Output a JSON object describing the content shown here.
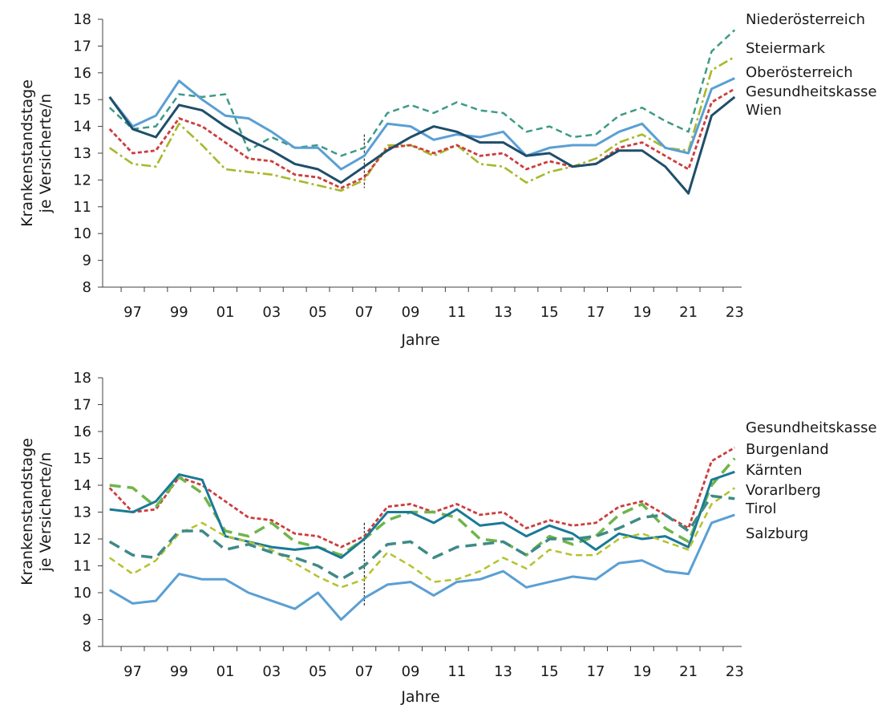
{
  "chart_data": [
    {
      "type": "line",
      "xlabel": "Jahre",
      "ylabel": [
        "Krankenstandstage",
        "je Versicherte/n"
      ],
      "ylim": [
        8,
        18
      ],
      "yticks": [
        8,
        9,
        10,
        11,
        12,
        13,
        14,
        15,
        16,
        17,
        18
      ],
      "x": [
        1996,
        1997,
        1998,
        1999,
        2000,
        2001,
        2002,
        2003,
        2004,
        2005,
        2006,
        2007,
        2008,
        2009,
        2010,
        2011,
        2012,
        2013,
        2014,
        2015,
        2016,
        2017,
        2018,
        2019,
        2020,
        2021,
        2022,
        2023
      ],
      "xtick_labels": [
        "97",
        "99",
        "01",
        "03",
        "05",
        "07",
        "09",
        "11",
        "13",
        "15",
        "17",
        "19",
        "21",
        "23"
      ],
      "marker_year": 2007,
      "grid": false,
      "legend_placement": "right (direct labels)",
      "series": [
        {
          "name": "Niederösterreich",
          "color": "#3e9a86",
          "style": "dashed",
          "values": [
            14.7,
            13.9,
            14.0,
            15.2,
            15.1,
            15.2,
            13.1,
            13.6,
            13.2,
            13.3,
            12.9,
            13.2,
            14.5,
            14.8,
            14.5,
            14.9,
            14.6,
            14.5,
            13.8,
            14.0,
            13.6,
            13.7,
            14.4,
            14.7,
            14.2,
            13.8,
            16.8,
            17.6
          ]
        },
        {
          "name": "Steiermark",
          "color": "#a8b82a",
          "style": "dashdot",
          "values": [
            13.2,
            12.6,
            12.5,
            14.1,
            13.3,
            12.4,
            12.3,
            12.2,
            12.0,
            11.8,
            11.6,
            12.0,
            13.3,
            13.3,
            12.9,
            13.3,
            12.6,
            12.5,
            11.9,
            12.3,
            12.5,
            12.8,
            13.4,
            13.7,
            13.2,
            13.1,
            16.1,
            16.6
          ]
        },
        {
          "name": "Oberösterreich",
          "color": "#5a9fd4",
          "style": "solid",
          "values": [
            15.1,
            14.0,
            14.4,
            15.7,
            15.0,
            14.4,
            14.3,
            13.8,
            13.2,
            13.2,
            12.4,
            12.9,
            14.1,
            14.0,
            13.5,
            13.7,
            13.6,
            13.8,
            12.9,
            13.2,
            13.3,
            13.3,
            13.8,
            14.1,
            13.2,
            13.0,
            15.4,
            15.8
          ]
        },
        {
          "name": "Gesundheitskasse",
          "color": "#cc3d3d",
          "style": "dotted",
          "values": [
            13.9,
            13.0,
            13.1,
            14.3,
            14.0,
            13.4,
            12.8,
            12.7,
            12.2,
            12.1,
            11.7,
            12.1,
            13.2,
            13.3,
            13.0,
            13.3,
            12.9,
            13.0,
            12.4,
            12.7,
            12.5,
            12.6,
            13.2,
            13.4,
            12.9,
            12.4,
            14.9,
            15.4
          ]
        },
        {
          "name": "Wien",
          "color": "#1f4e6a",
          "style": "solid",
          "values": [
            15.1,
            13.9,
            13.6,
            14.8,
            14.6,
            14.0,
            13.5,
            13.1,
            12.6,
            12.4,
            11.9,
            12.5,
            13.1,
            13.6,
            14.0,
            13.8,
            13.4,
            13.4,
            12.9,
            13.0,
            12.5,
            12.6,
            13.1,
            13.1,
            12.5,
            11.5,
            14.4,
            15.1
          ]
        }
      ]
    },
    {
      "type": "line",
      "xlabel": "Jahre",
      "ylabel": [
        "Krankenstandstage",
        "je Versicherte/n"
      ],
      "ylim": [
        8,
        18
      ],
      "yticks": [
        8,
        9,
        10,
        11,
        12,
        13,
        14,
        15,
        16,
        17,
        18
      ],
      "x": [
        1996,
        1997,
        1998,
        1999,
        2000,
        2001,
        2002,
        2003,
        2004,
        2005,
        2006,
        2007,
        2008,
        2009,
        2010,
        2011,
        2012,
        2013,
        2014,
        2015,
        2016,
        2017,
        2018,
        2019,
        2020,
        2021,
        2022,
        2023
      ],
      "xtick_labels": [
        "97",
        "99",
        "01",
        "03",
        "05",
        "07",
        "09",
        "11",
        "13",
        "15",
        "17",
        "19",
        "21",
        "23"
      ],
      "marker_year": 2007,
      "grid": false,
      "legend_placement": "right (direct labels)",
      "series": [
        {
          "name": "Gesundheitskasse",
          "color": "#cc3d3d",
          "style": "dotted",
          "values": [
            13.9,
            13.0,
            13.1,
            14.3,
            14.0,
            13.4,
            12.8,
            12.7,
            12.2,
            12.1,
            11.7,
            12.1,
            13.2,
            13.3,
            13.0,
            13.3,
            12.9,
            13.0,
            12.4,
            12.7,
            12.5,
            12.6,
            13.2,
            13.4,
            12.9,
            12.4,
            14.9,
            15.4
          ]
        },
        {
          "name": "Burgenland",
          "color": "#6fb54a",
          "style": "longdash",
          "values": [
            14.0,
            13.9,
            13.2,
            14.3,
            13.7,
            12.3,
            12.1,
            12.6,
            11.9,
            11.7,
            11.4,
            12.0,
            12.7,
            13.0,
            13.0,
            12.8,
            12.0,
            11.9,
            11.4,
            12.1,
            11.8,
            12.1,
            12.9,
            13.3,
            12.4,
            11.9,
            14.0,
            15.0
          ]
        },
        {
          "name": "Kärnten",
          "color": "#1a7a96",
          "style": "solid",
          "values": [
            13.1,
            13.0,
            13.4,
            14.4,
            14.2,
            12.1,
            11.9,
            11.7,
            11.6,
            11.7,
            11.3,
            12.0,
            13.0,
            13.0,
            12.6,
            13.1,
            12.5,
            12.6,
            12.1,
            12.5,
            12.2,
            11.6,
            12.2,
            12.0,
            12.1,
            11.7,
            14.2,
            14.5
          ]
        },
        {
          "name": "Vorarlberg",
          "color": "#b5c22e",
          "style": "dashed",
          "values": [
            11.3,
            10.7,
            11.2,
            12.2,
            12.6,
            12.1,
            11.9,
            11.6,
            11.1,
            10.6,
            10.2,
            10.5,
            11.5,
            11.0,
            10.4,
            10.5,
            10.8,
            11.3,
            10.9,
            11.6,
            11.4,
            11.4,
            12.0,
            12.2,
            11.9,
            11.6,
            13.3,
            13.9
          ]
        },
        {
          "name": "Tirol",
          "color": "#3e8a86",
          "style": "longdash",
          "values": [
            11.9,
            11.4,
            11.3,
            12.3,
            12.3,
            11.6,
            11.8,
            11.5,
            11.3,
            11.0,
            10.5,
            11.0,
            11.8,
            11.9,
            11.3,
            11.7,
            11.8,
            11.9,
            11.4,
            12.0,
            12.0,
            12.1,
            12.4,
            12.8,
            12.9,
            12.3,
            13.6,
            13.5
          ]
        },
        {
          "name": "Salzburg",
          "color": "#5a9fd4",
          "style": "solid",
          "values": [
            10.1,
            9.6,
            9.7,
            10.7,
            10.5,
            10.5,
            10.0,
            9.7,
            9.4,
            10.0,
            9.0,
            9.8,
            10.3,
            10.4,
            9.9,
            10.4,
            10.5,
            10.8,
            10.2,
            10.4,
            10.6,
            10.5,
            11.1,
            11.2,
            10.8,
            10.7,
            12.6,
            12.9
          ]
        }
      ]
    }
  ]
}
